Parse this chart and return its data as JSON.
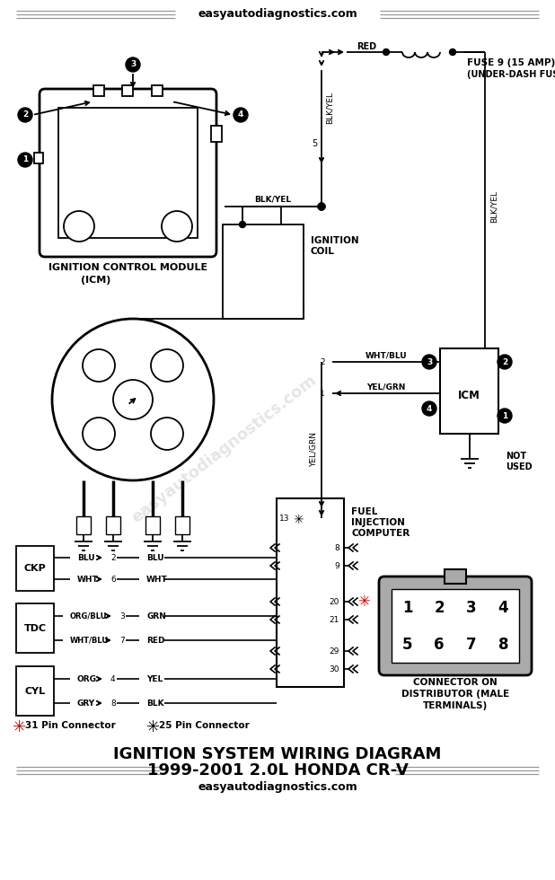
{
  "title_line1": "IGNITION SYSTEM WIRING DIAGRAM",
  "title_line2": "1999-2001 2.0L HONDA CR-V",
  "website": "easyautodiagnostics.com",
  "bg_color": "#ffffff",
  "line_color": "#000000",
  "red_color": "#cc0000",
  "gray_color": "#999999",
  "conn_gray": "#aaaaaa"
}
